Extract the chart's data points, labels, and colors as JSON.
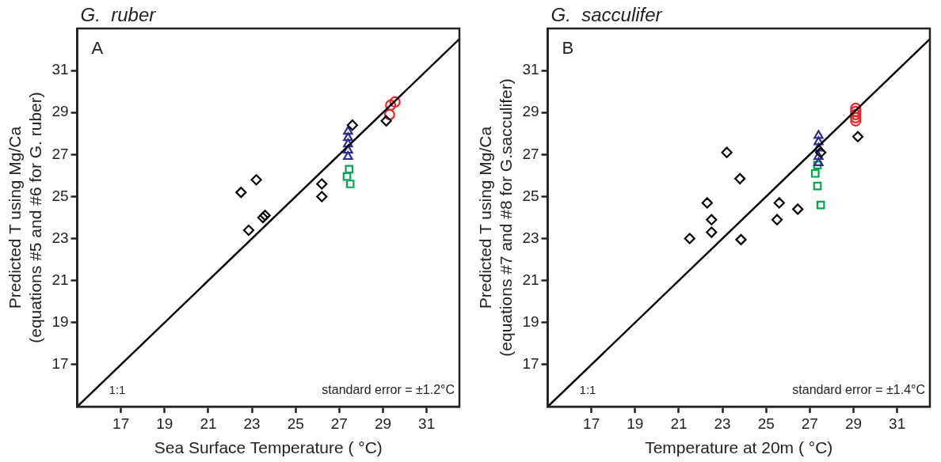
{
  "chart_data": [
    {
      "type": "scatter",
      "title": "G.  ruber",
      "xlabel": "Sea Surface Temperature ( °C)",
      "ylabel": "Predicted T using Mg/Ca\n(equations #5 and #6 for G. ruber)",
      "annotations": [
        "A",
        "1:1",
        "standard error = ±1.2°C"
      ],
      "xlim": [
        15,
        32.5
      ],
      "ylim": [
        15,
        33
      ],
      "xticks": [
        17,
        19,
        21,
        23,
        25,
        27,
        29,
        31
      ],
      "yticks": [
        17,
        19,
        21,
        23,
        25,
        27,
        29,
        31
      ],
      "grid": false,
      "legend": false,
      "series": [
        {
          "type": "line",
          "color": "#000000",
          "marker": "none",
          "x": [
            15,
            32.5
          ],
          "values": [
            15,
            32.5
          ]
        },
        {
          "color": "#000000",
          "marker": "diamond",
          "x": [
            22.5,
            23.2,
            22.85,
            23.5,
            23.6,
            26.2,
            26.2,
            27.6,
            29.15
          ],
          "values": [
            25.2,
            25.8,
            23.4,
            24.0,
            24.1,
            25.6,
            25.0,
            28.4,
            28.6
          ]
        },
        {
          "color": "#2b2f8f",
          "marker": "triangle",
          "x": [
            27.4,
            27.4,
            27.4,
            27.4,
            27.4
          ],
          "values": [
            26.9,
            27.2,
            27.5,
            27.8,
            28.1
          ]
        },
        {
          "color": "#00a650",
          "marker": "square",
          "x": [
            27.45,
            27.35,
            27.5
          ],
          "values": [
            26.3,
            25.95,
            25.6
          ]
        },
        {
          "color": "#e8262b",
          "marker": "circle",
          "x": [
            29.55,
            29.35,
            29.3
          ],
          "values": [
            29.5,
            29.35,
            28.9
          ]
        }
      ]
    },
    {
      "type": "scatter",
      "title": "G.  sacculifer",
      "xlabel": "Temperature at 20m ( °C)",
      "ylabel": "Predicted T using Mg/Ca\n(equations #7 and #8 for G.sacculifer)",
      "annotations": [
        "B",
        "1:1",
        "standard error = ±1.4°C"
      ],
      "xlim": [
        15,
        32.5
      ],
      "ylim": [
        15,
        33
      ],
      "xticks": [
        17,
        19,
        21,
        23,
        25,
        27,
        29,
        31
      ],
      "yticks": [
        17,
        19,
        21,
        23,
        25,
        27,
        29,
        31
      ],
      "grid": false,
      "legend": false,
      "series": [
        {
          "type": "line",
          "color": "#000000",
          "marker": "none",
          "x": [
            15,
            32.5
          ],
          "values": [
            15,
            32.5
          ]
        },
        {
          "color": "#000000",
          "marker": "diamond",
          "x": [
            21.5,
            22.3,
            22.5,
            22.5,
            23.2,
            23.8,
            23.85,
            25.6,
            25.5,
            26.45,
            27.5,
            29.2
          ],
          "values": [
            23.0,
            24.7,
            23.9,
            23.3,
            27.1,
            25.85,
            22.95,
            24.7,
            23.9,
            24.4,
            27.1,
            27.85
          ]
        },
        {
          "color": "#2b2f8f",
          "marker": "triangle",
          "x": [
            27.4,
            27.4,
            27.4,
            27.4,
            27.4
          ],
          "values": [
            27.9,
            27.6,
            27.3,
            26.9,
            26.6
          ]
        },
        {
          "color": "#00a650",
          "marker": "square",
          "x": [
            27.35,
            27.25,
            27.35,
            27.5
          ],
          "values": [
            26.5,
            26.1,
            25.5,
            24.6
          ]
        },
        {
          "color": "#e8262b",
          "marker": "circle",
          "x": [
            29.1,
            29.1,
            29.1,
            29.1,
            29.1
          ],
          "values": [
            28.6,
            28.75,
            28.9,
            29.05,
            29.2
          ]
        }
      ]
    }
  ]
}
